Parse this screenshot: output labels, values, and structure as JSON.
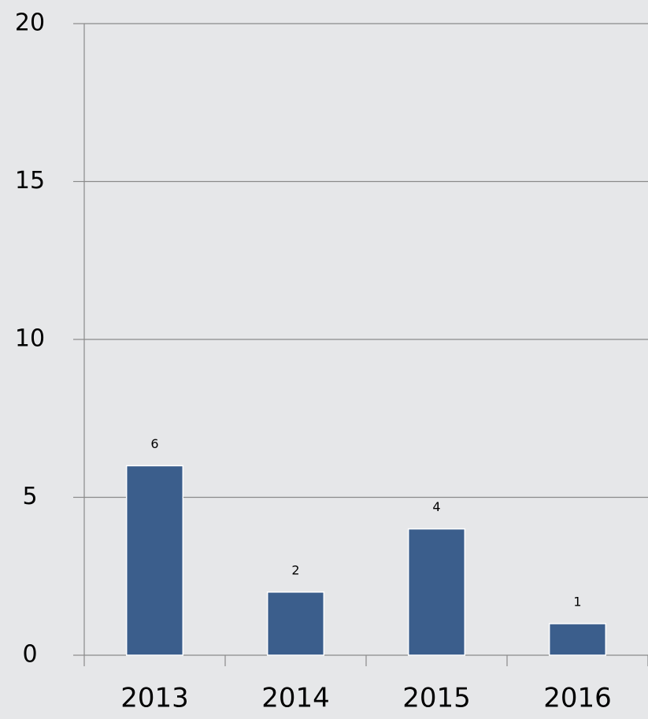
{
  "chart_data": {
    "type": "bar",
    "categories": [
      "2013",
      "2014",
      "2015",
      "2016"
    ],
    "values": [
      6,
      2,
      4,
      1
    ],
    "color": "#3b5e8c",
    "ylim": [
      0,
      20
    ],
    "yticks": [
      0,
      5,
      10,
      15,
      20
    ],
    "grid": true
  }
}
